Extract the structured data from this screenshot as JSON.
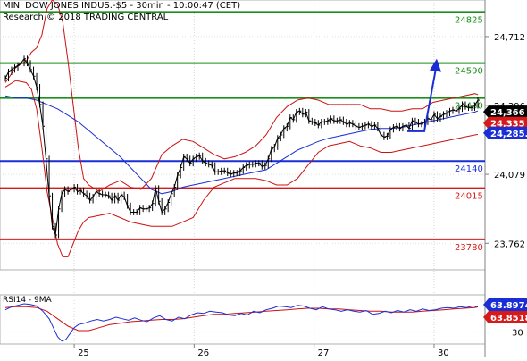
{
  "header": {
    "line1": "MINI DOW JONES INDUS.-$5 - 30min - 10:00:47 (CET)",
    "line2": "Research © 2018 TRADING CENTRAL"
  },
  "colors": {
    "resistance": "#1a8f1a",
    "pivot": "#1a2ed6",
    "support": "#d61a1a",
    "price": "#000000",
    "bollinger": "#cc1111",
    "ma": "#1a2ed6",
    "rsi": "#1a2ed6",
    "rsi_ma": "#cc1111",
    "arrow": "#1a2ed6",
    "badge_last": "#000000",
    "badge_red": "#d61a1a",
    "badge_blue": "#1a2ed6"
  },
  "chart_data": [
    {
      "type": "line",
      "title": "MINI DOW JONES INDUS.-$5 - 30min",
      "x_ticks": [
        "25",
        "26",
        "27",
        "30"
      ],
      "y_ticks": [
        24712,
        24396,
        24079,
        23762
      ],
      "y_tick_labels": [
        "24,712",
        "24,396",
        "24,079",
        "23,762"
      ],
      "ylim": [
        23640,
        24880
      ],
      "grid": true,
      "levels": [
        {
          "value": 24825,
          "label": "24825",
          "kind": "resistance"
        },
        {
          "value": 24590,
          "label": "24590",
          "kind": "resistance"
        },
        {
          "value": 24430,
          "label": "24430",
          "kind": "resistance"
        },
        {
          "value": 24140,
          "label": "24140",
          "kind": "pivot"
        },
        {
          "value": 24015,
          "label": "24015",
          "kind": "support"
        },
        {
          "value": 23780,
          "label": "23780",
          "kind": "support"
        }
      ],
      "price_badges": [
        {
          "label": "24,366",
          "value": 24366,
          "kind": "last"
        },
        {
          "label": "24,335",
          "value": 24335,
          "kind": "red"
        },
        {
          "label": "24,285.4",
          "value": 24285.4,
          "kind": "blue"
        }
      ],
      "forecast_arrow": {
        "from": 24285,
        "to": 24590
      },
      "series": [
        {
          "kind": "price",
          "x": [
            0,
            3,
            6,
            9,
            12,
            15,
            18,
            21,
            24,
            27,
            30,
            33,
            36,
            39,
            42,
            45,
            48,
            51,
            54,
            57,
            60,
            63,
            66,
            69,
            72,
            75,
            78,
            81,
            84,
            87,
            90,
            93,
            96,
            99,
            102,
            105,
            108,
            111,
            114,
            117,
            120,
            123,
            126,
            129,
            132,
            135,
            138,
            141,
            144,
            147,
            150,
            153,
            156,
            159,
            162,
            165,
            168,
            171,
            174,
            177,
            180,
            183,
            186,
            189,
            192,
            195,
            198,
            201,
            204,
            207,
            210,
            213,
            216,
            219,
            222,
            225,
            228,
            231,
            234,
            237,
            240,
            243,
            246,
            249,
            252,
            255,
            258,
            261,
            264,
            267,
            270,
            273,
            276,
            279,
            282,
            285,
            288,
            291,
            294,
            297,
            300,
            303,
            306,
            309,
            312,
            315,
            318,
            321,
            324,
            327,
            330,
            333,
            336,
            339,
            342,
            345,
            348,
            351,
            354,
            357,
            360,
            363,
            366,
            369,
            372,
            375,
            378,
            381,
            384,
            387,
            390,
            393,
            396,
            399,
            402,
            405,
            408,
            411,
            414,
            417,
            420,
            423,
            426,
            429,
            432,
            435,
            438,
            441,
            444,
            447,
            450,
            453
          ],
          "values": [
            24520,
            24550,
            24560,
            24570,
            24580,
            24590,
            24610,
            24590,
            24560,
            24530,
            24480,
            24400,
            24300,
            24150,
            23980,
            23840,
            23800,
            23920,
            23990,
            24010,
            24000,
            24010,
            24020,
            24000,
            24005,
            23990,
            23980,
            23960,
            23975,
            24000,
            23990,
            23985,
            23985,
            23980,
            23960,
            23980,
            23960,
            23985,
            23975,
            23935,
            23905,
            23905,
            23905,
            23925,
            23920,
            23920,
            23925,
            23945,
            24015,
            23955,
            23905,
            23920,
            23950,
            23990,
            24020,
            24075,
            24110,
            24160,
            24150,
            24130,
            24150,
            24160,
            24165,
            24140,
            24130,
            24125,
            24120,
            24090,
            24090,
            24095,
            24095,
            24085,
            24080,
            24085,
            24085,
            24095,
            24110,
            24120,
            24125,
            24125,
            24130,
            24130,
            24115,
            24120,
            24150,
            24195,
            24205,
            24245,
            24260,
            24290,
            24300,
            24340,
            24330,
            24365,
            24370,
            24355,
            24365,
            24325,
            24320,
            24315,
            24305,
            24320,
            24320,
            24325,
            24335,
            24325,
            24325,
            24330,
            24320,
            24310,
            24315,
            24310,
            24300,
            24295,
            24300,
            24305,
            24310,
            24300,
            24305,
            24290,
            24260,
            24250,
            24255,
            24285,
            24295,
            24300,
            24290,
            24300,
            24305,
            24290,
            24325,
            24320,
            24310,
            24310,
            24320,
            24335,
            24330,
            24355,
            24335,
            24345,
            24355,
            24360,
            24370,
            24375,
            24370,
            24380,
            24400,
            24390,
            24385,
            24385,
            24395,
            24420
          ]
        },
        {
          "kind": "bollinger_upper",
          "x": [
            0,
            10,
            20,
            25,
            30,
            35,
            40,
            45,
            50,
            55,
            60,
            65,
            70,
            75,
            80,
            90,
            100,
            110,
            120,
            130,
            140,
            150,
            160,
            170,
            180,
            190,
            200,
            210,
            220,
            230,
            240,
            250,
            260,
            270,
            280,
            290,
            300,
            310,
            320,
            330,
            340,
            350,
            360,
            370,
            380,
            390,
            400,
            410,
            420,
            430,
            440,
            450,
            453
          ],
          "values": [
            24500,
            24570,
            24600,
            24640,
            24660,
            24720,
            24840,
            24880,
            24860,
            24780,
            24600,
            24400,
            24200,
            24060,
            24030,
            24000,
            24030,
            24050,
            24020,
            24010,
            24060,
            24170,
            24210,
            24240,
            24230,
            24200,
            24170,
            24150,
            24160,
            24180,
            24210,
            24260,
            24340,
            24390,
            24420,
            24430,
            24420,
            24400,
            24400,
            24400,
            24400,
            24380,
            24380,
            24370,
            24370,
            24380,
            24380,
            24410,
            24420,
            24430,
            24440,
            24450,
            24445
          ]
        },
        {
          "kind": "bollinger_lower",
          "x": [
            0,
            10,
            20,
            25,
            30,
            35,
            40,
            45,
            50,
            55,
            60,
            65,
            70,
            75,
            80,
            90,
            100,
            110,
            120,
            130,
            140,
            150,
            160,
            170,
            180,
            190,
            200,
            210,
            220,
            230,
            240,
            250,
            260,
            270,
            280,
            290,
            300,
            310,
            320,
            330,
            340,
            350,
            360,
            370,
            380,
            390,
            400,
            410,
            420,
            430,
            440,
            450,
            453
          ],
          "values": [
            24480,
            24510,
            24500,
            24470,
            24380,
            24200,
            24000,
            23880,
            23760,
            23700,
            23700,
            23760,
            23820,
            23860,
            23880,
            23890,
            23900,
            23880,
            23860,
            23850,
            23840,
            23840,
            23840,
            23860,
            23880,
            23960,
            24020,
            24040,
            24060,
            24060,
            24060,
            24050,
            24030,
            24030,
            24060,
            24120,
            24180,
            24210,
            24220,
            24230,
            24210,
            24200,
            24180,
            24180,
            24190,
            24200,
            24210,
            24220,
            24230,
            24240,
            24250,
            24260,
            24262
          ]
        },
        {
          "kind": "moving_average",
          "x": [
            0,
            10,
            20,
            30,
            40,
            50,
            60,
            70,
            80,
            90,
            100,
            110,
            120,
            130,
            140,
            150,
            160,
            170,
            180,
            190,
            200,
            210,
            220,
            230,
            240,
            250,
            260,
            270,
            280,
            290,
            300,
            310,
            320,
            330,
            340,
            350,
            360,
            370,
            380,
            390,
            400,
            410,
            420,
            430,
            440,
            450,
            453
          ],
          "values": [
            24440,
            24430,
            24430,
            24420,
            24400,
            24380,
            24350,
            24320,
            24280,
            24240,
            24200,
            24160,
            24110,
            24060,
            24010,
            23990,
            24000,
            24020,
            24030,
            24040,
            24050,
            24060,
            24070,
            24080,
            24090,
            24100,
            24130,
            24160,
            24190,
            24210,
            24230,
            24245,
            24255,
            24265,
            24275,
            24285,
            24290,
            24290,
            24295,
            24305,
            24315,
            24325,
            24335,
            24345,
            24355,
            24365,
            24370
          ]
        }
      ]
    },
    {
      "type": "line",
      "title": "RSI14 - 9MA",
      "y_ticks": [
        30
      ],
      "y_tick_labels": [
        "30"
      ],
      "ylim": [
        14,
        80
      ],
      "grid": true,
      "value_badges": [
        {
          "label": "63.8974",
          "value": 63.8974,
          "kind": "blue"
        },
        {
          "label": "63.8518",
          "value": 63.8518,
          "kind": "red"
        }
      ],
      "series": [
        {
          "kind": "rsi",
          "x": [
            0,
            6,
            12,
            18,
            24,
            30,
            36,
            42,
            46,
            50,
            54,
            58,
            62,
            66,
            70,
            76,
            82,
            88,
            94,
            100,
            106,
            112,
            118,
            124,
            130,
            136,
            142,
            148,
            154,
            160,
            166,
            172,
            178,
            184,
            190,
            196,
            202,
            208,
            214,
            220,
            226,
            232,
            238,
            244,
            250,
            256,
            262,
            268,
            274,
            280,
            286,
            292,
            298,
            304,
            310,
            316,
            322,
            328,
            334,
            340,
            346,
            352,
            358,
            364,
            370,
            376,
            382,
            388,
            394,
            400,
            406,
            412,
            418,
            424,
            430,
            436,
            442,
            448,
            453
          ],
          "values": [
            60,
            64,
            66,
            68,
            67,
            65,
            58,
            48,
            36,
            24,
            18,
            20,
            28,
            36,
            40,
            42,
            45,
            47,
            45,
            47,
            50,
            48,
            46,
            49,
            46,
            44,
            49,
            52,
            47,
            45,
            50,
            48,
            53,
            56,
            55,
            58,
            57,
            56,
            53,
            52,
            55,
            53,
            58,
            56,
            60,
            62,
            65,
            64,
            63,
            66,
            65,
            62,
            60,
            64,
            61,
            60,
            58,
            60,
            58,
            57,
            59,
            54,
            55,
            58,
            56,
            59,
            57,
            60,
            58,
            61,
            59,
            60,
            62,
            63,
            62,
            64,
            63,
            65,
            64
          ]
        },
        {
          "kind": "rsi_ma",
          "x": [
            0,
            10,
            20,
            30,
            40,
            50,
            60,
            70,
            80,
            90,
            100,
            110,
            120,
            130,
            140,
            150,
            160,
            170,
            180,
            190,
            200,
            210,
            220,
            230,
            240,
            250,
            260,
            270,
            280,
            290,
            300,
            310,
            320,
            330,
            340,
            350,
            360,
            370,
            380,
            390,
            400,
            410,
            420,
            430,
            440,
            450,
            453
          ],
          "values": [
            63,
            64,
            64,
            63,
            58,
            48,
            38,
            32,
            32,
            36,
            40,
            42,
            44,
            45,
            46,
            47,
            47,
            48,
            50,
            52,
            54,
            54,
            55,
            56,
            57,
            58,
            59,
            60,
            61,
            62,
            62,
            61,
            61,
            60,
            59,
            58,
            58,
            57,
            57,
            57,
            58,
            59,
            60,
            61,
            62,
            63,
            63.8
          ]
        }
      ]
    }
  ]
}
